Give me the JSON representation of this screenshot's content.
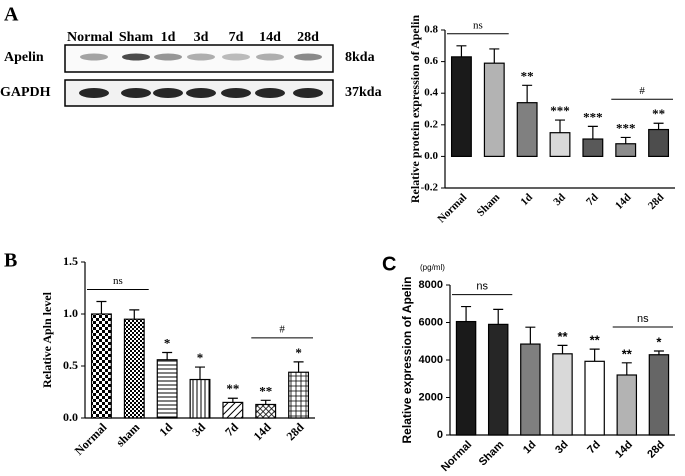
{
  "panels": [
    "A",
    "B",
    "C"
  ],
  "blot": {
    "lanes": [
      "Normal",
      "Sham",
      "1d",
      "3d",
      "7d",
      "14d",
      "28d"
    ],
    "rows": [
      "Apelin",
      "GAPDH"
    ],
    "sizes": [
      "8kda",
      "37kda"
    ]
  },
  "chart_data": [
    {
      "type": "bar",
      "y_label": "Relative protein expression of Apelin",
      "categories": [
        "Normal",
        "Sham",
        "1d",
        "3d",
        "7d",
        "14d",
        "28d"
      ],
      "values": [
        0.63,
        0.59,
        0.34,
        0.15,
        0.11,
        0.08,
        0.17
      ],
      "errors": [
        0.07,
        0.09,
        0.11,
        0.08,
        0.08,
        0.04,
        0.04
      ],
      "colors": [
        "#1a1a1a",
        "#b3b3b3",
        "#808080",
        "#d9d9d9",
        "#595959",
        "#8c8c8c",
        "#4d4d4d"
      ],
      "significance": [
        null,
        null,
        "**",
        "***",
        "***",
        "***",
        "**"
      ],
      "bracket_labels": [
        "ns",
        "#"
      ],
      "ylim": [
        -0.2,
        0.8
      ],
      "yticks": [
        -0.2,
        {
          "value": 0,
          "label": "0.0"
        },
        0.2,
        0.4,
        0.6,
        0.8
      ]
    },
    {
      "type": "bar",
      "y_label": "Relative Apln level",
      "categories": [
        "Normal",
        "sham",
        "1d",
        "3d",
        "7d",
        "14d",
        "28d"
      ],
      "values": [
        1.0,
        0.95,
        0.56,
        0.37,
        0.15,
        0.13,
        0.44
      ],
      "errors": [
        0.12,
        0.09,
        0.07,
        0.12,
        0.04,
        0.04,
        0.1
      ],
      "color": "#000000",
      "significance": [
        null,
        null,
        "*",
        "*",
        "**",
        "**",
        "*"
      ],
      "bracket_labels": [
        "ns",
        "#"
      ],
      "ylim": [
        0,
        1.5
      ],
      "yticks": [
        {
          "value": 0,
          "label": "0.0"
        },
        0.5,
        {
          "value": 1,
          "label": "1.0"
        },
        1.5
      ]
    },
    {
      "type": "bar",
      "y_label": "Relative expression of Apelin",
      "unit": "(pg/ml)",
      "categories": [
        "Normal",
        "Sham",
        "1d",
        "3d",
        "7d",
        "14d",
        "28d"
      ],
      "values": [
        6050,
        5900,
        4850,
        4330,
        3930,
        3200,
        4280
      ],
      "errors": [
        800,
        800,
        900,
        450,
        650,
        650,
        200
      ],
      "colors": [
        "#1a1a1a",
        "#262626",
        "#7f7f7f",
        "#d9d9d9",
        "#ffffff",
        "#b3b3b3",
        "#666666"
      ],
      "significance": [
        null,
        null,
        null,
        "**",
        "**",
        "**",
        "*"
      ],
      "bracket_labels": [
        "ns",
        "ns"
      ],
      "ylim": [
        0,
        8000
      ],
      "yticks": [
        0,
        2000,
        4000,
        6000,
        8000
      ]
    }
  ]
}
